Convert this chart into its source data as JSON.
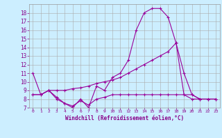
{
  "xlabel": "Windchill (Refroidissement éolien,°C)",
  "background_color": "#cceeff",
  "line_color": "#990099",
  "grid_color": "#aaaaaa",
  "xlim": [
    -0.5,
    23.5
  ],
  "ylim": [
    7,
    19
  ],
  "xticks": [
    0,
    1,
    2,
    3,
    4,
    5,
    6,
    7,
    8,
    9,
    10,
    11,
    12,
    13,
    14,
    15,
    16,
    17,
    18,
    19,
    20,
    21,
    22,
    23
  ],
  "yticks": [
    7,
    8,
    9,
    10,
    11,
    12,
    13,
    14,
    15,
    16,
    17,
    18
  ],
  "line1_x": [
    0,
    1,
    2,
    3,
    4,
    5,
    6,
    7,
    8,
    9,
    10,
    11,
    12,
    13,
    14,
    15,
    16,
    17,
    18,
    19,
    20,
    21,
    22,
    23
  ],
  "line1_y": [
    11,
    8.5,
    9,
    8,
    7.5,
    7,
    8,
    7,
    9.5,
    9,
    10.5,
    11,
    12.5,
    16,
    18,
    18.5,
    18.5,
    17.5,
    14.5,
    8.5,
    8,
    8,
    8,
    8
  ],
  "line2_x": [
    0,
    1,
    2,
    3,
    4,
    5,
    6,
    7,
    8,
    9,
    10,
    11,
    12,
    13,
    14,
    15,
    16,
    17,
    18,
    19,
    20,
    21,
    22,
    23
  ],
  "line2_y": [
    8.5,
    8.5,
    9,
    9,
    9.0,
    9.2,
    9.3,
    9.5,
    9.8,
    10.0,
    10.2,
    10.5,
    11.0,
    11.5,
    12.0,
    12.5,
    13.0,
    13.5,
    14.5,
    11.0,
    8.5,
    8.0,
    8.0,
    8.0
  ],
  "line3_x": [
    0,
    1,
    2,
    3,
    4,
    5,
    6,
    7,
    8,
    9,
    10,
    11,
    12,
    13,
    14,
    15,
    16,
    17,
    18,
    19,
    20,
    21,
    22,
    23
  ],
  "line3_y": [
    8.5,
    8.5,
    9.0,
    8.2,
    7.5,
    7.2,
    7.8,
    7.3,
    8.0,
    8.2,
    8.5,
    8.5,
    8.5,
    8.5,
    8.5,
    8.5,
    8.5,
    8.5,
    8.5,
    8.5,
    8.5,
    8.0,
    8.0,
    8.0
  ]
}
